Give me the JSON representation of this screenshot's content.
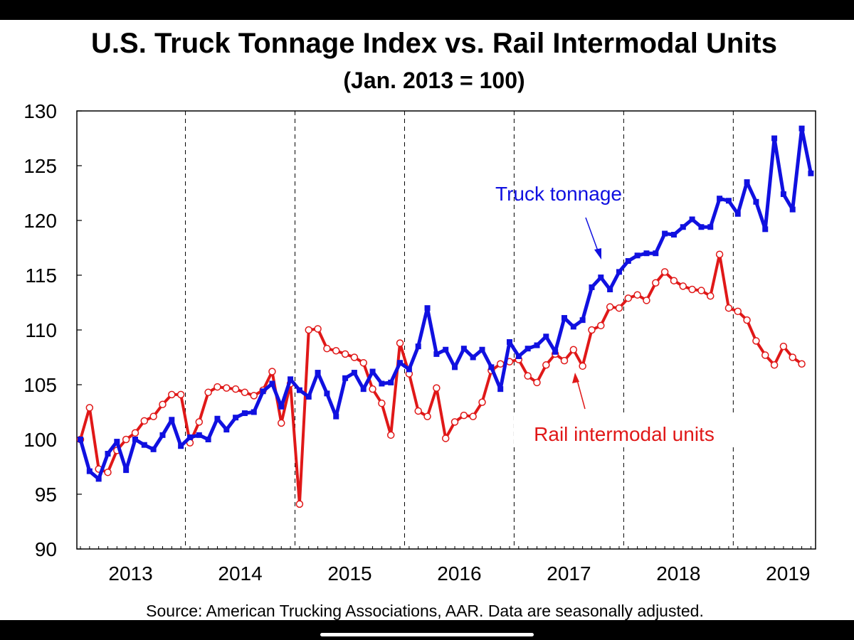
{
  "chart_data": {
    "type": "line",
    "title": "U.S. Truck Tonnage Index vs. Rail Intermodal Units",
    "subtitle": "(Jan. 2013 = 100)",
    "source": "Source: American Trucking Associations, AAR.  Data are seasonally adjusted.",
    "ylim": [
      90,
      130
    ],
    "yticks": [
      "90",
      "95",
      "100",
      "105",
      "110",
      "115",
      "120",
      "125",
      "130"
    ],
    "year_labels": [
      "2013",
      "2014",
      "2015",
      "2016",
      "2017",
      "2018",
      "2019"
    ],
    "grid": "vertical dashed lines at year boundaries",
    "months_start": "2013-01",
    "series": [
      {
        "name": "Truck tonnage",
        "color": "#1010e0",
        "marker": "square",
        "values": [
          100.0,
          97.1,
          96.4,
          98.7,
          99.8,
          97.2,
          100.0,
          99.5,
          99.1,
          100.4,
          101.8,
          99.4,
          100.2,
          100.4,
          100.0,
          101.9,
          100.9,
          102.0,
          102.4,
          102.5,
          104.4,
          105.1,
          103.0,
          105.5,
          104.5,
          103.9,
          106.1,
          104.2,
          102.1,
          105.6,
          106.1,
          104.6,
          106.2,
          105.1,
          105.2,
          107.0,
          106.4,
          108.5,
          112.0,
          107.8,
          108.2,
          106.6,
          108.3,
          107.5,
          108.2,
          106.6,
          104.6,
          108.9,
          107.6,
          108.3,
          108.6,
          109.4,
          108.0,
          111.1,
          110.3,
          110.9,
          113.9,
          114.8,
          113.7,
          115.3,
          116.3,
          116.8,
          117.0,
          117.0,
          118.8,
          118.7,
          119.4,
          120.1,
          119.4,
          119.4,
          122.0,
          121.8,
          120.6,
          123.5,
          121.7,
          119.2,
          127.5,
          122.4,
          121.0,
          128.4,
          124.3
        ]
      },
      {
        "name": "Rail intermodal units",
        "color": "#e01818",
        "marker": "circle",
        "values": [
          100.0,
          102.9,
          97.3,
          97.0,
          99.0,
          100.0,
          100.6,
          101.7,
          102.1,
          103.2,
          104.1,
          104.1,
          99.7,
          101.6,
          104.3,
          104.8,
          104.7,
          104.6,
          104.3,
          104.0,
          104.5,
          106.2,
          101.5,
          105.1,
          94.1,
          110.0,
          110.1,
          108.3,
          108.1,
          107.8,
          107.5,
          107.0,
          104.6,
          103.3,
          100.4,
          108.8,
          106.0,
          102.6,
          102.1,
          104.7,
          100.1,
          101.6,
          102.2,
          102.1,
          103.4,
          106.3,
          106.9,
          107.1,
          107.3,
          105.8,
          105.2,
          106.8,
          107.8,
          107.2,
          108.2,
          106.7,
          110.0,
          110.4,
          112.1,
          112.0,
          112.9,
          113.2,
          112.7,
          114.3,
          115.3,
          114.5,
          114.0,
          113.7,
          113.6,
          113.1,
          116.9,
          112.0,
          111.7,
          110.9,
          109.0,
          107.7,
          106.8,
          108.5,
          107.5,
          106.9
        ]
      }
    ],
    "annotations": [
      {
        "text": "Truck tonnage",
        "series": "Truck tonnage",
        "color": "#1010e0"
      },
      {
        "text": "Rail intermodal units",
        "series": "Rail intermodal units",
        "color": "#e01818"
      }
    ]
  }
}
